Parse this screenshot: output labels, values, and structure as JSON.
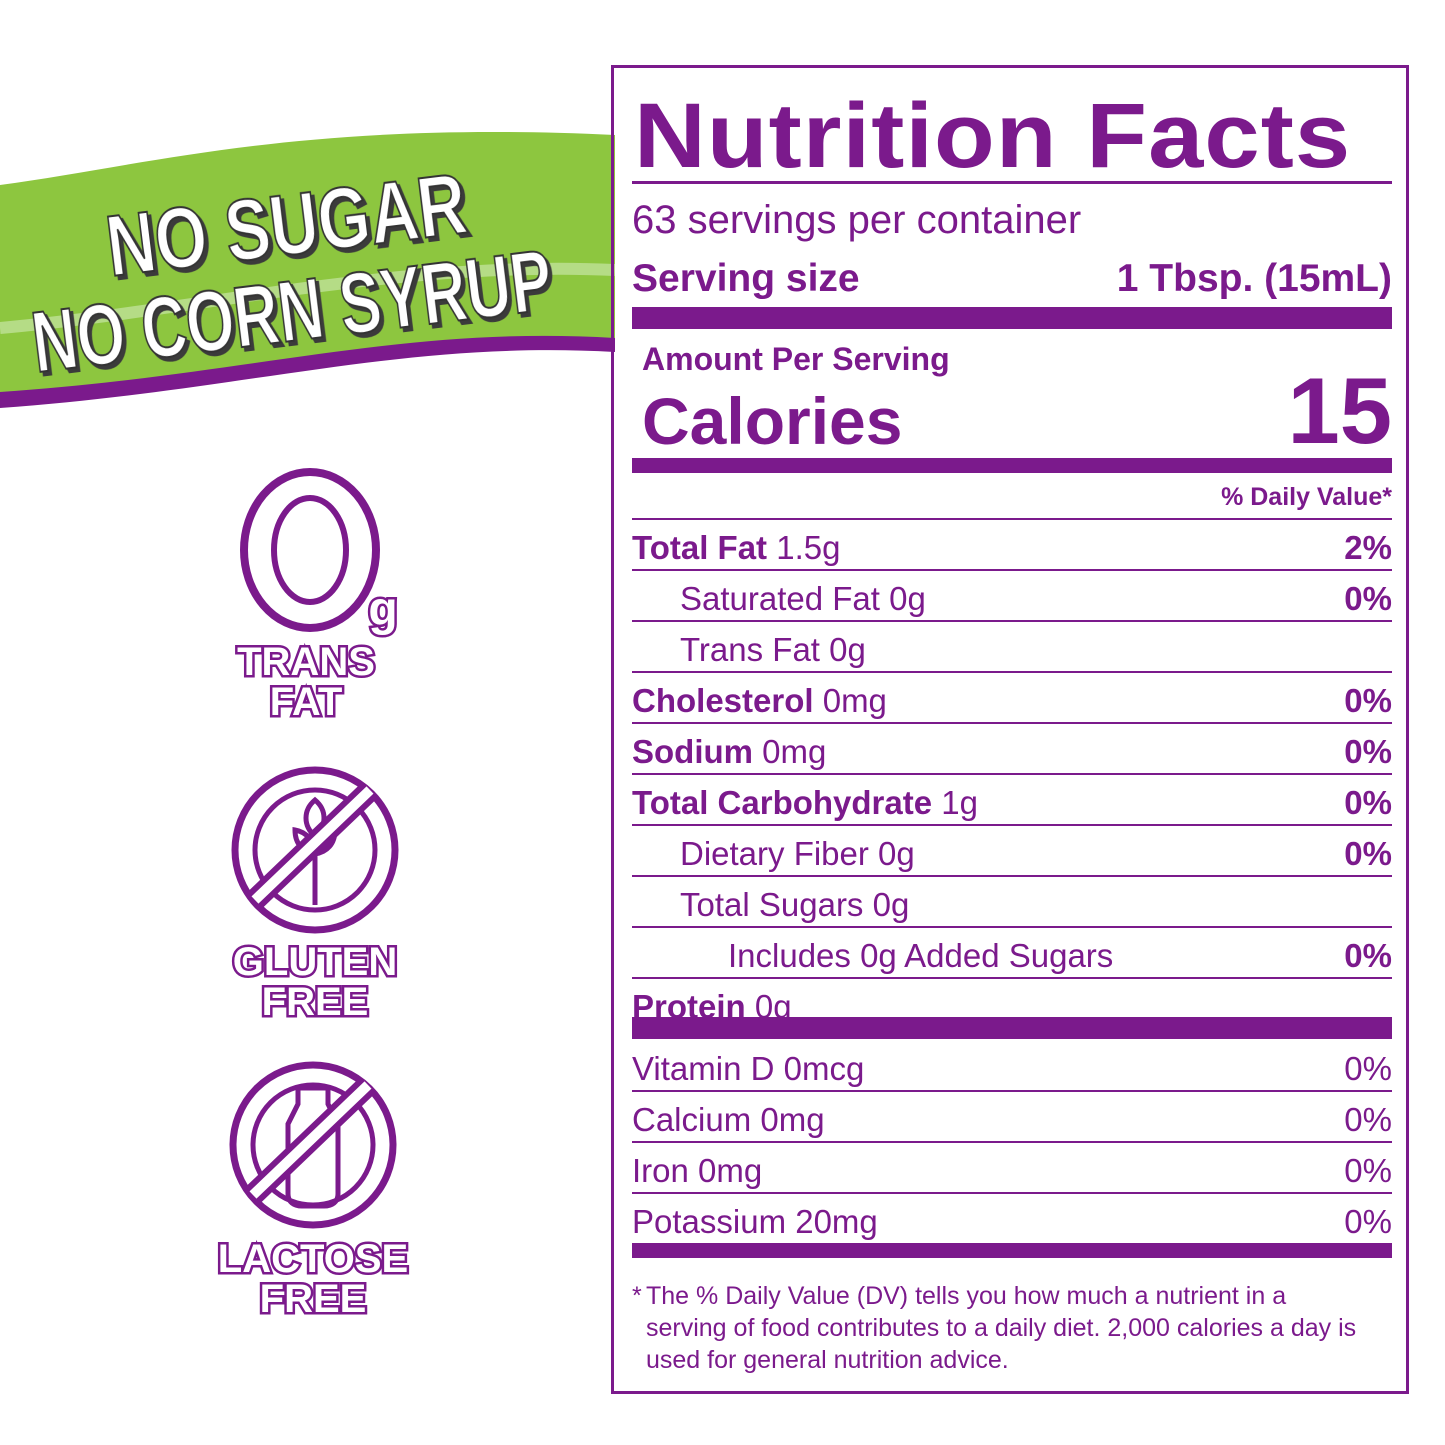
{
  "banner": {
    "line1": "NO SUGAR",
    "line2": "NO CORN SYRUP",
    "green": "#8dc63f",
    "purple": "#7b1a8c"
  },
  "badges": [
    {
      "icon": "zero-grams-icon",
      "big": "0",
      "unit": "g",
      "line1": "TRANS",
      "line2": "FAT"
    },
    {
      "icon": "no-wheat-icon",
      "line1": "GLUTEN",
      "line2": "FREE"
    },
    {
      "icon": "no-milk-bottle-icon",
      "line1": "LACTOSE",
      "line2": "FREE"
    }
  ],
  "label": {
    "title": "Nutrition Facts",
    "servings": "63 servings per container",
    "serving_size_label": "Serving size",
    "serving_size_value": "1 Tbsp. (15mL)",
    "amount_per_serving": "Amount Per Serving",
    "calories_label": "Calories",
    "calories_value": "15",
    "dv_header": "% Daily Value*",
    "nutrients": [
      {
        "name": "Total Fat",
        "amount": " 1.5g",
        "dv": "2%",
        "bold": true,
        "indent": 0
      },
      {
        "name": "Saturated Fat 0g",
        "amount": "",
        "dv": "0%",
        "bold": false,
        "indent": 1
      },
      {
        "name": "Trans Fat 0g",
        "amount": "",
        "dv": "",
        "bold": false,
        "indent": 1
      },
      {
        "name": "Cholesterol",
        "amount": " 0mg",
        "dv": "0%",
        "bold": true,
        "indent": 0
      },
      {
        "name": "Sodium",
        "amount": " 0mg",
        "dv": "0%",
        "bold": true,
        "indent": 0
      },
      {
        "name": "Total Carbohydrate",
        "amount": " 1g",
        "dv": "0%",
        "bold": true,
        "indent": 0
      },
      {
        "name": "Dietary Fiber 0g",
        "amount": "",
        "dv": "0%",
        "bold": false,
        "indent": 1
      },
      {
        "name": "Total Sugars 0g",
        "amount": "",
        "dv": "",
        "bold": false,
        "indent": 1
      },
      {
        "name": "Includes 0g Added Sugars",
        "amount": "",
        "dv": "0%",
        "bold": false,
        "indent": 2
      },
      {
        "name": "Protein",
        "amount": " 0g",
        "dv": "",
        "bold": true,
        "indent": 0
      }
    ],
    "vitamins": [
      {
        "name": "Vitamin D 0mcg",
        "dv": "0%"
      },
      {
        "name": "Calcium 0mg",
        "dv": "0%"
      },
      {
        "name": "Iron 0mg",
        "dv": "0%"
      },
      {
        "name": "Potassium 20mg",
        "dv": "0%"
      }
    ],
    "footnote_star": "*",
    "footnote": "The % Daily Value (DV) tells you how much a nutrient in a serving of food contributes to a daily diet. 2,000 calories a day is used for general nutrition advice."
  }
}
